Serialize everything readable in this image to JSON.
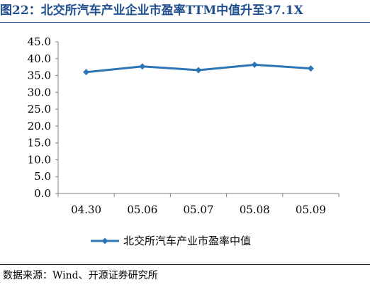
{
  "title": "图22：北交所汽车产业企业市盈率TTM中值升至37.1X",
  "source": "数据来源：Wind、开源证券研究所",
  "colors": {
    "title": "#1f4f8f",
    "series": "#2e75b6",
    "axis": "#7f7f7f"
  },
  "chart_data": {
    "type": "line",
    "categories": [
      "04.30",
      "05.06",
      "05.07",
      "05.08",
      "05.09"
    ],
    "series": [
      {
        "name": "北交所汽车产业市盈率中值",
        "values": [
          36.0,
          37.7,
          36.6,
          38.2,
          37.1
        ],
        "marker": "diamond"
      }
    ],
    "yticks": [
      "0.0",
      "5.0",
      "10.0",
      "15.0",
      "20.0",
      "25.0",
      "30.0",
      "35.0",
      "40.0",
      "45.0"
    ],
    "ylim": [
      0,
      45
    ],
    "xlabel": "",
    "ylabel": "",
    "grid": false,
    "legend": "bottom"
  }
}
